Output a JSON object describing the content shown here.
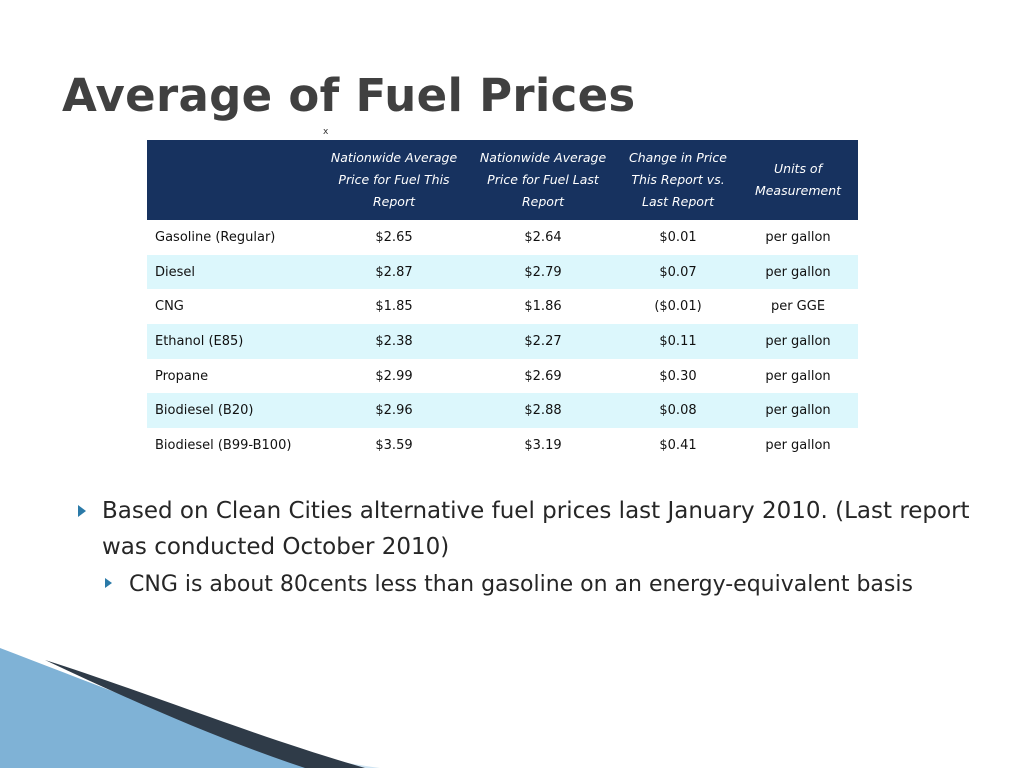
{
  "title": "Average of Fuel Prices",
  "stray_mark": "x",
  "table": {
    "headers": [
      "",
      "Nationwide Average Price for Fuel This Report",
      "Nationwide Average Price for Fuel Last Report",
      "Change in Price This Report vs. Last Report",
      "Units of Measurement"
    ],
    "rows": [
      [
        "Gasoline (Regular)",
        "$2.65",
        "$2.64",
        "$0.01",
        "per gallon"
      ],
      [
        "Diesel",
        "$2.87",
        "$2.79",
        "$0.07",
        "per gallon"
      ],
      [
        "CNG",
        "$1.85",
        "$1.86",
        "($0.01)",
        "per GGE"
      ],
      [
        "Ethanol (E85)",
        "$2.38",
        "$2.27",
        "$0.11",
        "per gallon"
      ],
      [
        "Propane",
        "$2.99",
        "$2.69",
        "$0.30",
        "per gallon"
      ],
      [
        "Biodiesel (B20)",
        "$2.96",
        "$2.88",
        "$0.08",
        "per gallon"
      ],
      [
        "Biodiesel (B99-B100)",
        "$3.59",
        "$3.19",
        "$0.41",
        "per gallon"
      ]
    ]
  },
  "bullets": [
    {
      "text": "Based on Clean Cities alternative fuel prices last January 2010. (Last report was conducted October 2010)",
      "sub": [
        {
          "text": "CNG is about 80cents less than gasoline on an energy-equivalent basis"
        }
      ]
    }
  ],
  "colors": {
    "header_bg": "#17325f",
    "stripe": "#dcf7fc",
    "bullet_accent": "#2b7aa8",
    "title_text": "#404040"
  },
  "icons": {
    "bullet": "triangle-bullet-icon"
  }
}
